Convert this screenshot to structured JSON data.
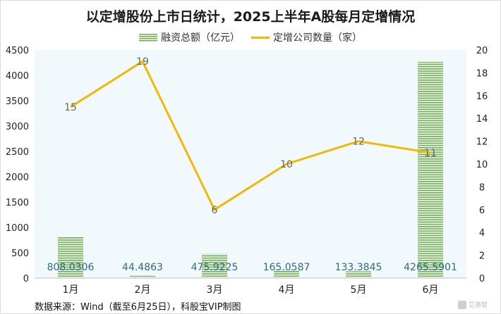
{
  "title": "以定增股份上市日统计，2025上半年A股每月定增情况",
  "source": "数据来源：Wind（截至6月25日），科股宝VIP制图",
  "watermark": "艾德智",
  "colors": {
    "bar": "#70ad47",
    "line": "#f5b800",
    "plot_bg": "#f2f9fd",
    "bar_label": "#2e6b8a",
    "line_label": "#666666"
  },
  "chart_data": {
    "type": "bar",
    "categories": [
      "1月",
      "2月",
      "3月",
      "4月",
      "5月",
      "6月"
    ],
    "series": [
      {
        "name": "融资总额（亿元）",
        "type": "bar",
        "axis": "left",
        "values": [
          808.0306,
          44.4863,
          475.9225,
          165.0587,
          133.3845,
          4265.5901
        ],
        "labels": [
          "808.0306",
          "44.4863",
          "475.9225",
          "165.0587",
          "133.3845",
          "4265.5901"
        ]
      },
      {
        "name": "定增公司数量（家）",
        "type": "line",
        "axis": "right",
        "values": [
          15,
          19,
          6,
          10,
          12,
          11
        ],
        "labels": [
          "15",
          "19",
          "6",
          "10",
          "12",
          "11"
        ]
      }
    ],
    "y_left": {
      "min": 0,
      "max": 4500,
      "ticks": [
        "0",
        "500",
        "1000",
        "1500",
        "2000",
        "2500",
        "3000",
        "3500",
        "4000",
        "4500"
      ]
    },
    "y_right": {
      "min": 0,
      "max": 20,
      "ticks": [
        "0",
        "2",
        "4",
        "6",
        "8",
        "10",
        "12",
        "14",
        "16",
        "18",
        "20"
      ]
    },
    "grid": false,
    "legend_position": "top"
  }
}
